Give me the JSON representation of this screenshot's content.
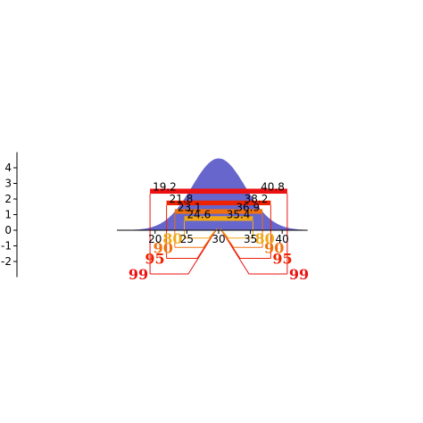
{
  "chart_data": {
    "type": "area",
    "xlim": [
      14,
      44
    ],
    "ylim": [
      -3,
      5
    ],
    "x_ticks": [
      "20",
      "25",
      "30",
      "35",
      "40"
    ],
    "y_ticks": [
      "-2",
      "-1",
      "0",
      "1",
      "2",
      "3",
      "4"
    ],
    "distribution": {
      "kind": "normal",
      "mean": 30,
      "sd": 4.2,
      "peak": 4.6
    },
    "intervals": [
      {
        "level": "99",
        "low": 19.2,
        "high": 40.8,
        "low_label": "19.2",
        "high_label": "40.8",
        "y": 2.5,
        "thickness": 0.32,
        "color": "#ee1111",
        "label_y": -2.8
      },
      {
        "level": "95",
        "low": 21.8,
        "high": 38.2,
        "low_label": "21.8",
        "high_label": "38.2",
        "y": 1.75,
        "thickness": 0.3,
        "color": "#ee2200",
        "label_y": -1.8
      },
      {
        "level": "90",
        "low": 23.1,
        "high": 36.9,
        "low_label": "23.1",
        "high_label": "36.9",
        "y": 1.2,
        "thickness": 0.3,
        "color": "#f07010",
        "label_y": -1.1
      },
      {
        "level": "80",
        "low": 24.6,
        "high": 35.4,
        "low_label": "24.6",
        "high_label": "35.4",
        "y": 0.75,
        "thickness": 0.3,
        "color": "#f0a818",
        "label_y": -0.5
      }
    ],
    "colors": {
      "fill": "#6666cc",
      "axis": "#000000"
    }
  }
}
